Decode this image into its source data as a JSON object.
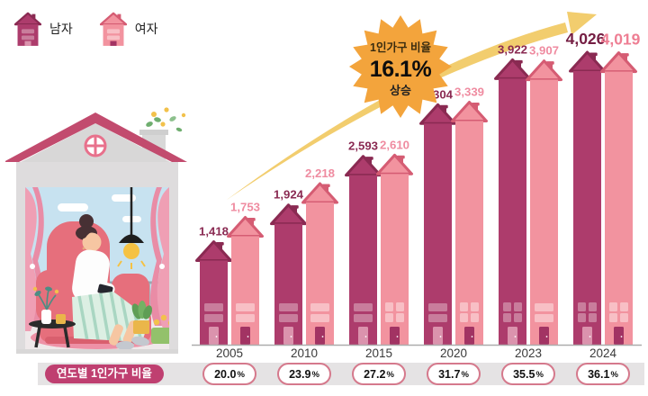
{
  "legend": {
    "male": "남자",
    "female": "여자"
  },
  "badge": {
    "line1": "1인가구 비율",
    "value": "16.1%",
    "line2": "상승"
  },
  "bottom": {
    "row_label": "연도별 1인가구 비율",
    "percent_suffix": "%"
  },
  "colors": {
    "male": {
      "body": "#ad3c6c",
      "edge": "#8a2a52",
      "window": "#c97d9c",
      "door": "#db93ad",
      "label": "#8a2a52",
      "label_big": "#741d42"
    },
    "female": {
      "body": "#f2939f",
      "edge": "#d55c73",
      "window": "#f8bfc5",
      "door": "#a23363",
      "label": "#ef8ba0",
      "label_big": "#ee7e93"
    },
    "band": "#e5e3e4",
    "pill": "#bf3f70",
    "oval_border": "#d5798c",
    "badge": "#f3a43c",
    "arrow": "#f2cd6e",
    "axis": "#adadad",
    "year_label": "#3a3a3a"
  },
  "chart_data": {
    "type": "bar",
    "title": "",
    "categories": [
      "2005",
      "2010",
      "2015",
      "2020",
      "2023",
      "2024"
    ],
    "series": [
      {
        "name": "남자",
        "values": [
          1418,
          1924,
          2593,
          3304,
          3922,
          4026
        ]
      },
      {
        "name": "여자",
        "values": [
          1753,
          2218,
          2610,
          3339,
          3907,
          4019
        ]
      }
    ],
    "value_labels": {
      "male": [
        "1,418",
        "1,924",
        "2,593",
        "3,304",
        "3,922",
        "4,026"
      ],
      "female": [
        "1,753",
        "2,218",
        "2,610",
        "3,339",
        "3,907",
        "4,019"
      ]
    },
    "ratio_row": {
      "label": "연도별 1인가구 비율",
      "values": [
        "20.0",
        "23.9",
        "27.2",
        "31.7",
        "35.5",
        "36.1"
      ]
    },
    "annotation": "1인가구 비율 16.1% 상승",
    "legend": [
      "남자",
      "여자"
    ],
    "ylim": [
      0,
      4200
    ],
    "grid": false,
    "legend_position": "top-left"
  }
}
